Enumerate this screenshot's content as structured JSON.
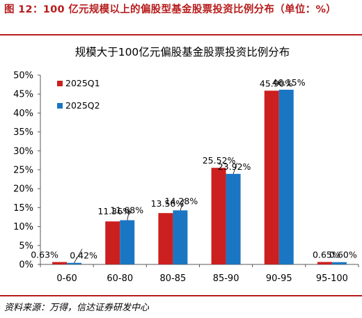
{
  "figure": {
    "title": "图 12：100 亿元规模以上的偏股型基金股票投资比例分布（单位：%）",
    "source": "资料来源：万得，信达证券研发中心"
  },
  "colors": {
    "series_2025q1": "#cc1f1f",
    "series_2025q2": "#1a76c2",
    "accent_rule": "#b71c1c"
  },
  "chart_data": {
    "type": "bar",
    "title": "规模大于100亿元偏股基金股票投资比例分布",
    "xlabel": "",
    "ylabel": "",
    "categories": [
      "0-60",
      "60-80",
      "80-85",
      "85-90",
      "90-95",
      "95-100"
    ],
    "series": [
      {
        "name": "2025Q1",
        "values": [
          0.63,
          11.36,
          13.56,
          25.52,
          45.9,
          0.65
        ]
      },
      {
        "name": "2025Q2",
        "values": [
          0.42,
          11.68,
          14.28,
          23.92,
          46.15,
          0.6
        ]
      }
    ],
    "data_labels": [
      [
        "0.63%",
        "11.36%",
        "13.56%",
        "25.52%",
        "45.90%",
        "0.65%"
      ],
      [
        "0.42%",
        "11.68%",
        "14.28%",
        "23.92%",
        "46.15%",
        "0.60%"
      ]
    ],
    "ylim": [
      0,
      50
    ],
    "yticks": [
      "0%",
      "5%",
      "10%",
      "15%",
      "20%",
      "25%",
      "30%",
      "35%",
      "40%",
      "45%",
      "50%"
    ],
    "grid": false,
    "legend_position": "top-left"
  }
}
